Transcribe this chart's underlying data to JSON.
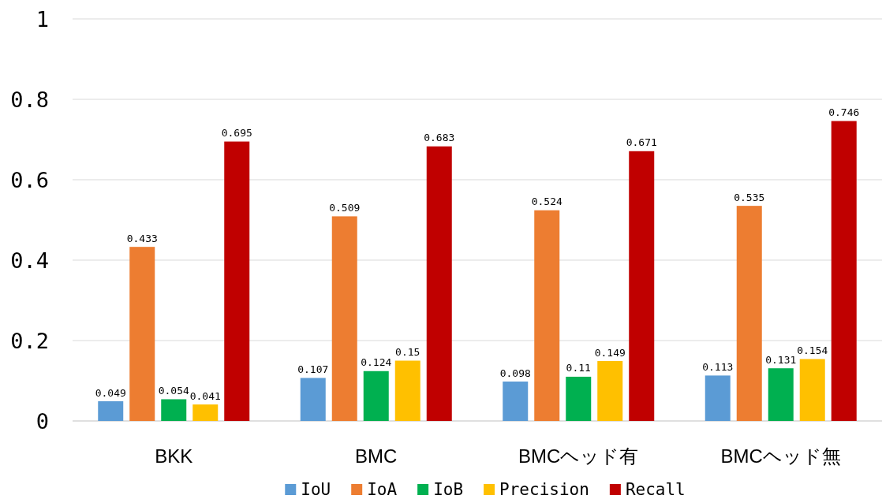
{
  "chart_data": {
    "type": "bar",
    "categories": [
      "BKK",
      "BMC",
      "BMCヘッド有",
      "BMCヘッド無"
    ],
    "series": [
      {
        "name": "IoU",
        "color": "#5b9bd5",
        "values": [
          0.049,
          0.107,
          0.098,
          0.113
        ]
      },
      {
        "name": "IoA",
        "color": "#ed7d31",
        "values": [
          0.433,
          0.509,
          0.524,
          0.535
        ]
      },
      {
        "name": "IoB",
        "color": "#00b050",
        "values": [
          0.054,
          0.124,
          0.11,
          0.131
        ]
      },
      {
        "name": "Precision",
        "color": "#ffc000",
        "values": [
          0.041,
          0.15,
          0.149,
          0.154
        ]
      },
      {
        "name": "Recall",
        "color": "#c00000",
        "values": [
          0.695,
          0.683,
          0.671,
          0.746
        ]
      }
    ],
    "ylim": [
      0,
      1
    ],
    "yticks": [
      0,
      0.2,
      0.4,
      0.6,
      0.8,
      1
    ],
    "grid": "y",
    "legend": "bottom",
    "data_labels": true
  }
}
